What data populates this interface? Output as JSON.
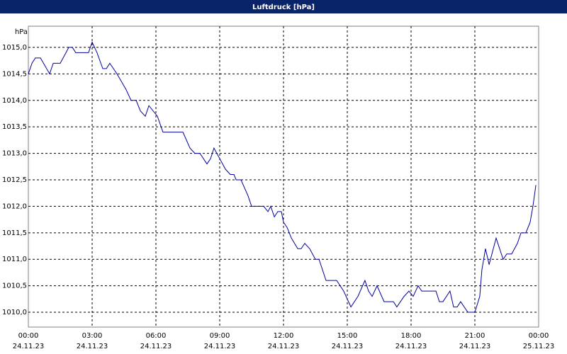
{
  "chart_data": {
    "type": "line",
    "title": "Luftdruck [hPa]",
    "y_label": "hPa",
    "x": [
      0,
      0.17,
      0.33,
      0.57,
      1,
      1.17,
      1.5,
      1.77,
      1.9,
      2.07,
      2.23,
      2.83,
      3,
      3.23,
      3.5,
      3.67,
      3.83,
      4.17,
      4.6,
      4.83,
      5.07,
      5.27,
      5.5,
      5.67,
      6.07,
      6.33,
      7.27,
      7.6,
      7.83,
      8.07,
      8.4,
      8.57,
      8.73,
      9,
      9.27,
      9.5,
      9.67,
      9.77,
      10,
      10.33,
      10.5,
      11.07,
      11.27,
      11.4,
      11.57,
      11.73,
      11.9,
      12,
      12.17,
      12.37,
      12.67,
      12.83,
      13,
      13.23,
      13.5,
      13.67,
      14,
      14.5,
      14.83,
      15.17,
      15.5,
      15.83,
      16,
      16.17,
      16.4,
      16.73,
      17.17,
      17.33,
      17.67,
      17.9,
      18.1,
      18.33,
      18.5,
      19.17,
      19.33,
      19.5,
      19.83,
      20,
      20.17,
      20.33,
      20.67,
      21,
      21.23,
      21.33,
      21.5,
      21.67,
      22,
      22.33,
      22.5,
      22.73,
      23,
      23.17,
      23.4,
      23.6,
      23.73,
      23.87
    ],
    "series": [
      {
        "name": "Luftdruck",
        "color": "#0000a0",
        "values": [
          1014.5,
          1014.7,
          1014.8,
          1014.8,
          1014.5,
          1014.7,
          1014.7,
          1014.9,
          1015.0,
          1015.0,
          1014.9,
          1014.9,
          1015.1,
          1014.9,
          1014.6,
          1014.6,
          1014.7,
          1014.5,
          1014.2,
          1014.0,
          1014.0,
          1013.8,
          1013.7,
          1013.9,
          1013.7,
          1013.4,
          1013.4,
          1013.1,
          1013.0,
          1013.0,
          1012.8,
          1012.9,
          1013.1,
          1012.9,
          1012.7,
          1012.6,
          1012.6,
          1012.5,
          1012.5,
          1012.2,
          1012.0,
          1012.0,
          1011.9,
          1012.0,
          1011.8,
          1011.9,
          1011.9,
          1011.7,
          1011.6,
          1011.4,
          1011.2,
          1011.2,
          1011.3,
          1011.2,
          1011.0,
          1011.0,
          1010.6,
          1010.6,
          1010.4,
          1010.1,
          1010.3,
          1010.6,
          1010.4,
          1010.3,
          1010.5,
          1010.2,
          1010.2,
          1010.1,
          1010.3,
          1010.4,
          1010.3,
          1010.5,
          1010.4,
          1010.4,
          1010.2,
          1010.2,
          1010.4,
          1010.1,
          1010.1,
          1010.2,
          1010.0,
          1010.0,
          1010.3,
          1010.8,
          1011.2,
          1010.9,
          1011.4,
          1011.0,
          1011.1,
          1011.1,
          1011.3,
          1011.5,
          1011.5,
          1011.7,
          1012.0,
          1012.4
        ]
      }
    ],
    "xlim": [
      0,
      24
    ],
    "xticks": [
      {
        "value": 0,
        "label": "00:00"
      },
      {
        "value": 3,
        "label": "03:00"
      },
      {
        "value": 6,
        "label": "06:00"
      },
      {
        "value": 9,
        "label": "09:00"
      },
      {
        "value": 12,
        "label": "12:00"
      },
      {
        "value": 15,
        "label": "15:00"
      },
      {
        "value": 18,
        "label": "18:00"
      },
      {
        "value": 21,
        "label": "21:00"
      },
      {
        "value": 24,
        "label": "00:00"
      }
    ],
    "xtick_dates": [
      "24.11.23",
      "24.11.23",
      "24.11.23",
      "24.11.23",
      "24.11.23",
      "24.11.23",
      "24.11.23",
      "24.11.23",
      "25.11.23"
    ],
    "ylim": [
      1009.72,
      1015.4
    ],
    "yticks": [
      {
        "value": 1010,
        "label": "1010,0"
      },
      {
        "value": 1010.5,
        "label": "1010,5"
      },
      {
        "value": 1011,
        "label": "1011,0"
      },
      {
        "value": 1011.5,
        "label": "1011,5"
      },
      {
        "value": 1012,
        "label": "1012,0"
      },
      {
        "value": 1012.5,
        "label": "1012,5"
      },
      {
        "value": 1013,
        "label": "1013,0"
      },
      {
        "value": 1013.5,
        "label": "1013,5"
      },
      {
        "value": 1014,
        "label": "1014,0"
      },
      {
        "value": 1014.5,
        "label": "1014,5"
      },
      {
        "value": 1015,
        "label": "1015,0"
      }
    ],
    "grid": true
  }
}
